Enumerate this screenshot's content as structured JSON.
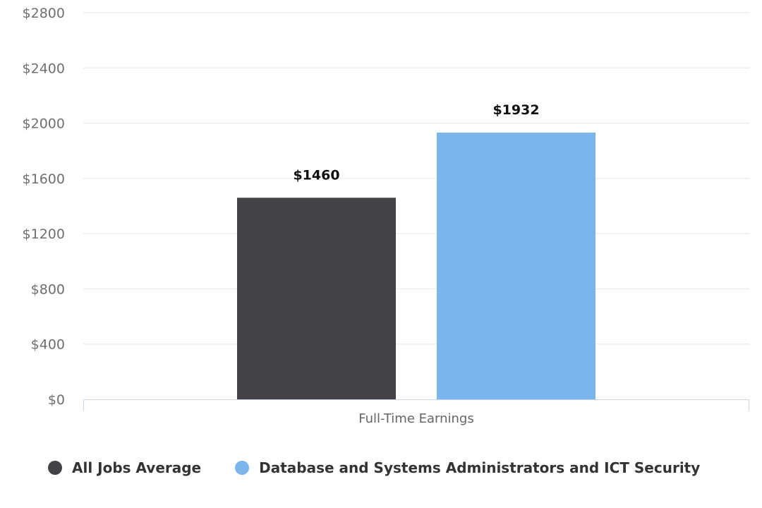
{
  "chart_data": {
    "type": "bar",
    "categories": [
      "Full-Time Earnings"
    ],
    "series": [
      {
        "name": "All Jobs Average",
        "values": [
          1460
        ],
        "data_labels": [
          "$1460"
        ],
        "color": "#434347"
      },
      {
        "name": "Database and Systems Administrators and ICT Security",
        "values": [
          1932
        ],
        "data_labels": [
          "$1932"
        ],
        "color": "#7cb5ec"
      }
    ],
    "y_ticks": [
      0,
      400,
      800,
      1200,
      1600,
      2000,
      2400,
      2800
    ],
    "y_tick_labels": [
      "$0",
      "$400",
      "$800",
      "$1200",
      "$1600",
      "$2000",
      "$2400",
      "$2800"
    ],
    "ylim": [
      0,
      2800
    ],
    "grid": true,
    "legend": "bottom",
    "xlabel": "",
    "ylabel": "",
    "title": ""
  },
  "legend": {
    "items": [
      {
        "label": "All Jobs Average",
        "color": "#434347"
      },
      {
        "label": "Database and Systems Administrators and ICT Security",
        "color": "#7cb5ec"
      }
    ]
  }
}
